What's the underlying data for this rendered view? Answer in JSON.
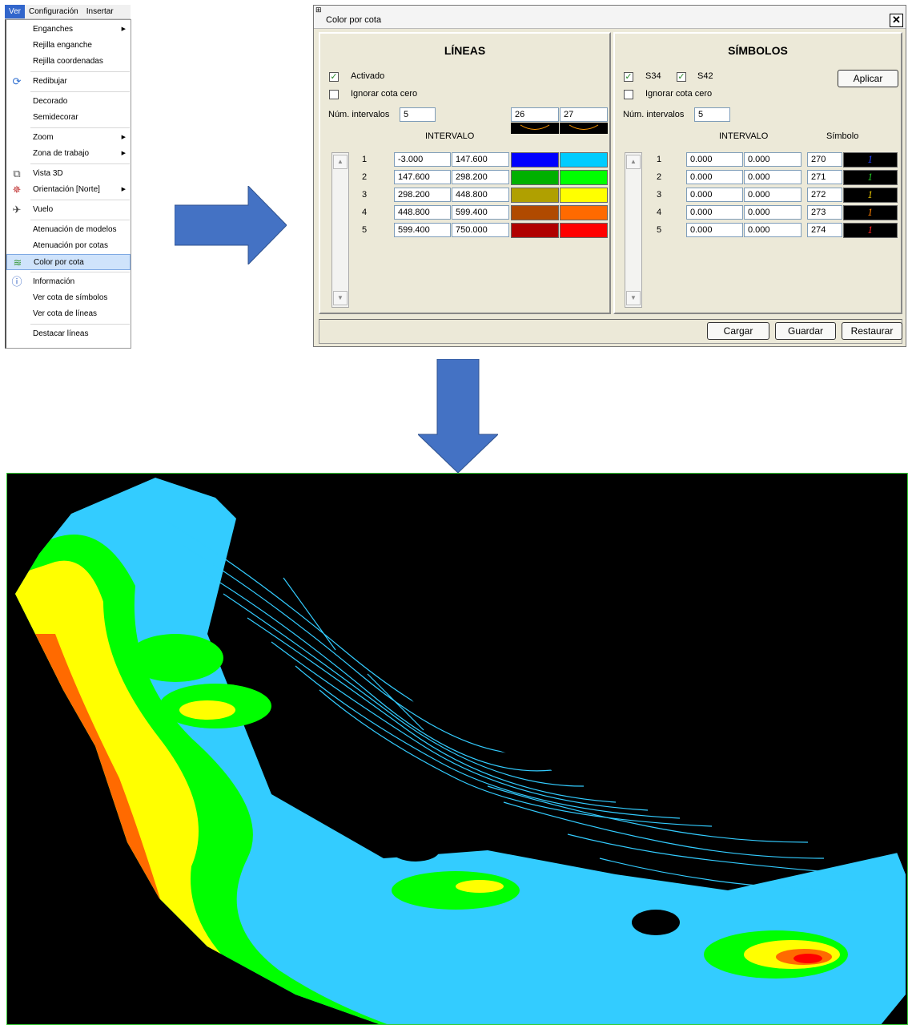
{
  "menu": {
    "bar": [
      "Ver",
      "Configuración",
      "Insertar"
    ],
    "items": [
      {
        "label": "Enganches",
        "submenu": true
      },
      {
        "label": "Rejilla enganche"
      },
      {
        "label": "Rejilla coordenadas"
      },
      {
        "label": "Redibujar",
        "icon": "redraw-icon"
      },
      {
        "label": "Decorado"
      },
      {
        "label": "Semidecorar"
      },
      {
        "label": "Zoom",
        "submenu": true
      },
      {
        "label": "Zona de trabajo",
        "submenu": true
      },
      {
        "label": "Vista 3D",
        "icon": "cube-3d-icon"
      },
      {
        "label": "Orientación [Norte]",
        "icon": "compass-icon",
        "submenu": true
      },
      {
        "label": "Vuelo",
        "icon": "airplane-icon"
      },
      {
        "label": "Atenuación de modelos"
      },
      {
        "label": "Atenuación por cotas"
      },
      {
        "label": "Color por cota",
        "icon": "contour-color-icon",
        "selected": true
      },
      {
        "label": "Información",
        "icon": "info-icon"
      },
      {
        "label": "Ver cota de símbolos"
      },
      {
        "label": "Ver cota de líneas"
      },
      {
        "label": "Destacar líneas"
      }
    ]
  },
  "dialog": {
    "title": "Color por cota",
    "lineas": {
      "title": "LÍNEAS",
      "activado_label": "Activado",
      "activado": true,
      "ignorar_label": "Ignorar cota cero",
      "ignorar": false,
      "num_label": "Núm. intervalos",
      "num_value": "5",
      "line_codes": [
        "26",
        "27"
      ],
      "interval_header": "INTERVALO",
      "rows": [
        {
          "n": "1",
          "from": "-3.000",
          "to": "147.600",
          "c1": "#0000ff",
          "c2": "#00ccff"
        },
        {
          "n": "2",
          "from": "147.600",
          "to": "298.200",
          "c1": "#00b000",
          "c2": "#00ff00"
        },
        {
          "n": "3",
          "from": "298.200",
          "to": "448.800",
          "c1": "#b0a000",
          "c2": "#ffff00"
        },
        {
          "n": "4",
          "from": "448.800",
          "to": "599.400",
          "c1": "#b04a00",
          "c2": "#ff6a00"
        },
        {
          "n": "5",
          "from": "599.400",
          "to": "750.000",
          "c1": "#b00000",
          "c2": "#ff0000"
        }
      ]
    },
    "simbolos": {
      "title": "SÍMBOLOS",
      "s34_label": "S34",
      "s34": true,
      "s42_label": "S42",
      "s42": true,
      "aplicar_label": "Aplicar",
      "ignorar_label": "Ignorar cota cero",
      "ignorar": false,
      "num_label": "Núm. intervalos",
      "num_value": "5",
      "interval_header": "INTERVALO",
      "symbol_header": "Símbolo",
      "rows": [
        {
          "n": "1",
          "from": "0.000",
          "to": "0.000",
          "code": "270",
          "glyph": "1",
          "color": "#2040ff"
        },
        {
          "n": "2",
          "from": "0.000",
          "to": "0.000",
          "code": "271",
          "glyph": "1",
          "color": "#20c020"
        },
        {
          "n": "3",
          "from": "0.000",
          "to": "0.000",
          "code": "272",
          "glyph": "1",
          "color": "#e0c000"
        },
        {
          "n": "4",
          "from": "0.000",
          "to": "0.000",
          "code": "273",
          "glyph": "1",
          "color": "#ff8000"
        },
        {
          "n": "5",
          "from": "0.000",
          "to": "0.000",
          "code": "274",
          "glyph": "1",
          "color": "#ff2020"
        }
      ]
    },
    "buttons": {
      "cargar": "Cargar",
      "guardar": "Guardar",
      "restaurar": "Restaurar"
    }
  },
  "colors": {
    "arrow": "#4472c4",
    "map_bg": "#000000",
    "contour": "#33ccff",
    "green": "#00ff00",
    "yellow": "#ffff00",
    "orange": "#ff6a00",
    "red": "#ff0000"
  }
}
